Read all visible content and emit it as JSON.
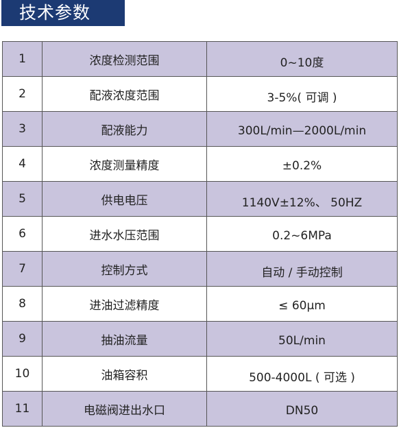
{
  "title": "技术参数",
  "rows": [
    {
      "index": "1",
      "name": "浓度检测范围",
      "value": "0~10度"
    },
    {
      "index": "2",
      "name": "配液浓度范围",
      "value": "3-5%( 可调 )"
    },
    {
      "index": "3",
      "name": "配液能力",
      "value": "300L/min—2000L/min"
    },
    {
      "index": "4",
      "name": "浓度测量精度",
      "value": "±0.2%"
    },
    {
      "index": "5",
      "name": "供电电压",
      "value": "1140V±12%、 50HZ"
    },
    {
      "index": "6",
      "name": "进水水压范围",
      "value": "0.2~6MPa"
    },
    {
      "index": "7",
      "name": "控制方式",
      "value": "自动 / 手动控制"
    },
    {
      "index": "8",
      "name": "进油过滤精度",
      "value": "≤ 60μm"
    },
    {
      "index": "9",
      "name": "抽油流量",
      "value": "50L/min"
    },
    {
      "index": "10",
      "name": "油箱容积",
      "value": "500-4000L ( 可选 )"
    },
    {
      "index": "11",
      "name": "电磁阀进出水口",
      "value": "DN50"
    }
  ],
  "colors": {
    "title_bg": "#1c3a73",
    "row_shade": "#c9c4dd",
    "row_plain": "#ffffff",
    "border": "#555555"
  }
}
